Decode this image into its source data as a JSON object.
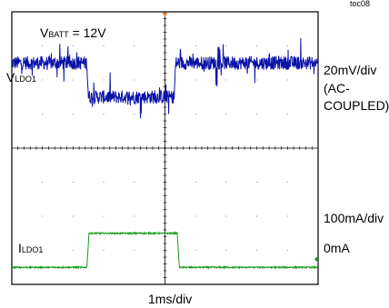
{
  "figure_id": "toc08",
  "chart_data": {
    "type": "line",
    "x_scale_label": "1ms/div",
    "x_divisions": 10,
    "y_divisions": 8,
    "annotation": {
      "prefix": "V",
      "sub": "BATT",
      "suffix": " = 12V"
    },
    "series": [
      {
        "name_main": "V",
        "name_sub": "LDO1",
        "scale_lines": [
          "20mV/div",
          "(AC-",
          "COUPLED)"
        ],
        "color": "#0b12a8",
        "unit": "mV",
        "x": [
          0.0,
          2.45,
          2.5,
          5.3,
          5.35,
          10.0
        ],
        "y": [
          0,
          0,
          -20,
          -20,
          0,
          0
        ],
        "noise_mV": 4
      },
      {
        "name_main": "I",
        "name_sub": "LDO1",
        "scale_label": "100mA/div",
        "zero_label": "0mA",
        "color": "#1a9a1a",
        "unit": "mA",
        "x": [
          0.0,
          2.45,
          2.52,
          5.4,
          5.47,
          10.0
        ],
        "y": [
          0,
          0,
          100,
          100,
          0,
          0
        ],
        "noise_mA": 2
      }
    ]
  }
}
